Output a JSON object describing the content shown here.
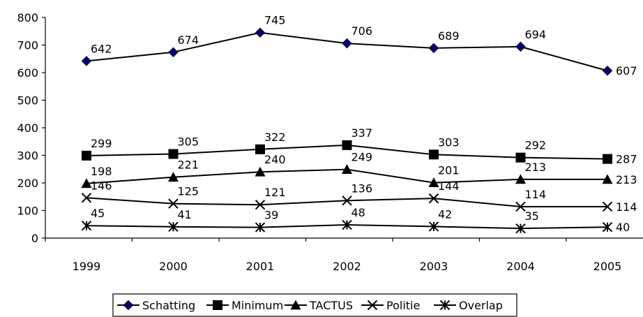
{
  "chart_data": {
    "type": "line",
    "title": "",
    "xlabel": "",
    "ylabel": "",
    "categories": [
      "1999",
      "2000",
      "2001",
      "2002",
      "2003",
      "2004",
      "2005"
    ],
    "ylim": [
      0,
      800
    ],
    "yticks": [
      "0",
      "100",
      "200",
      "300",
      "400",
      "500",
      "600",
      "700",
      "800"
    ],
    "grid": false,
    "legend_position": "bottom",
    "series": [
      {
        "name": "Schatting",
        "values": [
          642,
          674,
          745,
          706,
          689,
          694,
          607
        ],
        "marker": "diamond",
        "color": "#000080"
      },
      {
        "name": "Minimum",
        "values": [
          299,
          305,
          322,
          337,
          303,
          292,
          287
        ],
        "marker": "square",
        "color": "#000000"
      },
      {
        "name": "TACTUS",
        "values": [
          198,
          221,
          240,
          249,
          201,
          213,
          213
        ],
        "marker": "triangle",
        "color": "#000000"
      },
      {
        "name": "Politie",
        "values": [
          146,
          125,
          121,
          136,
          144,
          114,
          114
        ],
        "marker": "x",
        "color": "#000000"
      },
      {
        "name": "Overlap",
        "values": [
          45,
          41,
          39,
          48,
          42,
          35,
          40
        ],
        "marker": "star",
        "color": "#000000"
      }
    ]
  }
}
